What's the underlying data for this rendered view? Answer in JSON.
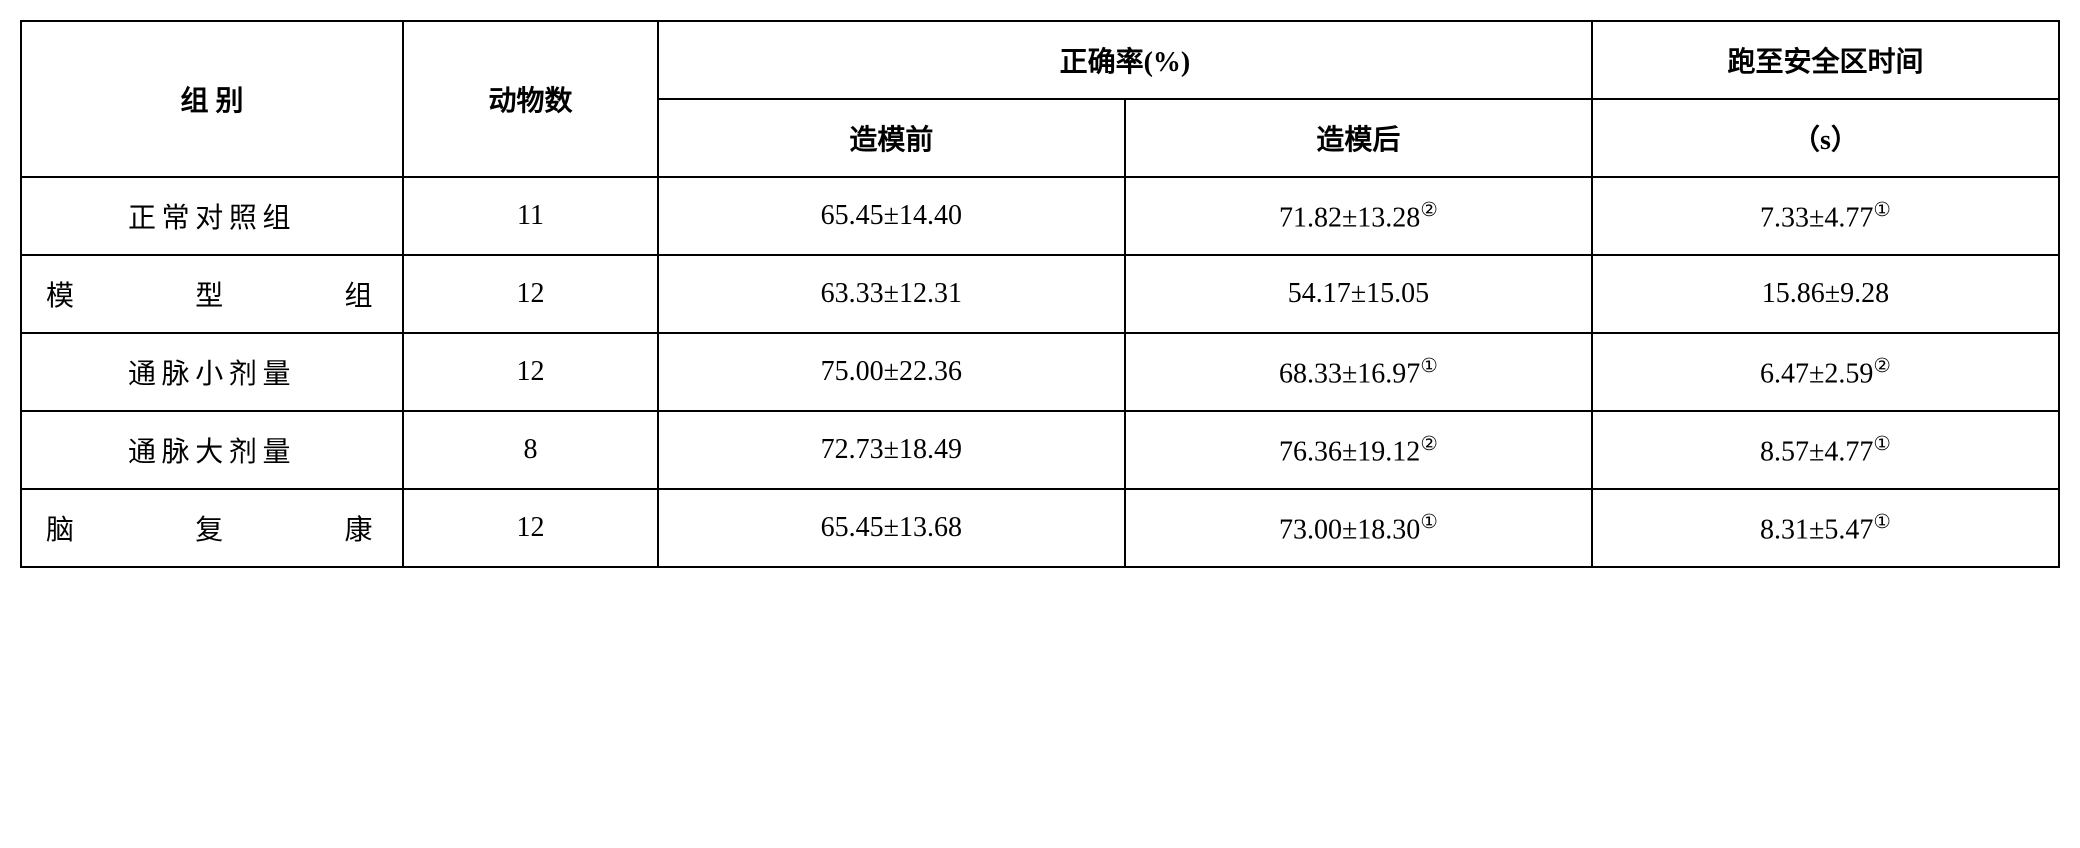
{
  "table": {
    "headers": {
      "group": "组 别",
      "animal_count": "动物数",
      "accuracy": "正确率(%)",
      "time_to_safe": "跑至安全区时间",
      "before_model": "造模前",
      "after_model": "造模后",
      "time_unit": "（s）"
    },
    "rows": [
      {
        "group": "正常对照组",
        "animal_count": "11",
        "before_model": "65.45±14.40",
        "after_model": "71.82±13.28",
        "after_model_sup": "②",
        "time": "7.33±4.77",
        "time_sup": "①",
        "justify": false
      },
      {
        "group": "模 型 组",
        "animal_count": "12",
        "before_model": "63.33±12.31",
        "after_model": "54.17±15.05",
        "after_model_sup": "",
        "time": "15.86±9.28",
        "time_sup": "",
        "justify": true
      },
      {
        "group": "通脉小剂量",
        "animal_count": "12",
        "before_model": "75.00±22.36",
        "after_model": "68.33±16.97",
        "after_model_sup": "①",
        "time": "6.47±2.59",
        "time_sup": "②",
        "justify": false
      },
      {
        "group": "通脉大剂量",
        "animal_count": "8",
        "before_model": "72.73±18.49",
        "after_model": "76.36±19.12",
        "after_model_sup": "②",
        "time": "8.57±4.77",
        "time_sup": "①",
        "justify": false
      },
      {
        "group": "脑 复 康",
        "animal_count": "12",
        "before_model": "65.45±13.68",
        "after_model": "73.00±18.30",
        "after_model_sup": "①",
        "time": "8.31±5.47",
        "time_sup": "①",
        "justify": true
      }
    ],
    "styling": {
      "border_color": "#000000",
      "border_width": 2,
      "background_color": "#ffffff",
      "text_color": "#000000",
      "font_size": 28,
      "header_font_family": "KaiTi",
      "body_font_family": "SimSun",
      "cell_padding": 18
    }
  }
}
